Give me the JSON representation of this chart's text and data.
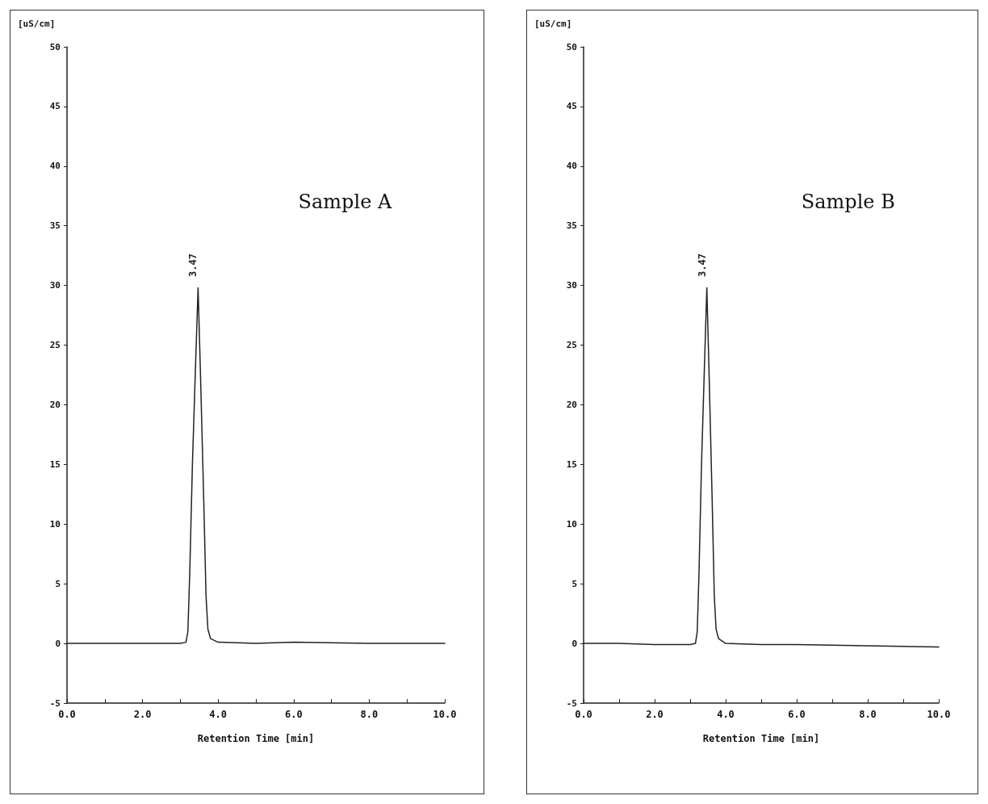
{
  "chart_data": [
    {
      "type": "line",
      "title": "Sample A",
      "xlabel": "Retention Time [min]",
      "ylabel": "[uS/cm]",
      "series": [
        {
          "color": "#222222",
          "x": [
            0,
            1,
            2,
            3,
            3.15,
            3.2,
            3.25,
            3.32,
            3.4,
            3.47,
            3.53,
            3.62,
            3.68,
            3.73,
            3.8,
            4,
            5,
            6,
            8,
            10
          ],
          "values": [
            0,
            0,
            0,
            0,
            0.1,
            1,
            6,
            15,
            23,
            29.8,
            23,
            12,
            4,
            1.2,
            0.4,
            0.1,
            0,
            0.1,
            0,
            0
          ]
        }
      ],
      "xlim": [
        0,
        10
      ],
      "xticks": [
        {
          "value": 0,
          "label": "0.0"
        },
        {
          "value": 1,
          "label": null
        },
        {
          "value": 2,
          "label": "2.0"
        },
        {
          "value": 3,
          "label": null
        },
        {
          "value": 4,
          "label": "4.0"
        },
        {
          "value": 5,
          "label": null
        },
        {
          "value": 6,
          "label": "6.0"
        },
        {
          "value": 7,
          "label": null
        },
        {
          "value": 8,
          "label": "8.0"
        },
        {
          "value": 9,
          "label": null
        },
        {
          "value": 10,
          "label": "10.0"
        }
      ],
      "ylim": [
        -5,
        50
      ],
      "yticks": [
        -5,
        0,
        5,
        10,
        15,
        20,
        25,
        30,
        35,
        40,
        45,
        50
      ],
      "annotations": [
        {
          "text": "3.47",
          "x": 3.47,
          "y": 29.8
        }
      ],
      "grid": false,
      "marker": "none",
      "line_style": "solid"
    },
    {
      "type": "line",
      "title": "Sample B",
      "xlabel": "Retention Time [min]",
      "ylabel": "[uS/cm]",
      "series": [
        {
          "color": "#222222",
          "x": [
            0,
            1,
            2,
            3,
            3.15,
            3.2,
            3.25,
            3.32,
            3.4,
            3.47,
            3.53,
            3.62,
            3.68,
            3.73,
            3.8,
            4,
            5,
            6,
            8,
            10
          ],
          "values": [
            0,
            0,
            -0.1,
            -0.1,
            0,
            1,
            6,
            15,
            23,
            29.8,
            23,
            12,
            4,
            1.2,
            0.4,
            0,
            -0.1,
            -0.1,
            -0.2,
            -0.3
          ]
        }
      ],
      "xlim": [
        0,
        10
      ],
      "xticks": [
        {
          "value": 0,
          "label": "0.0"
        },
        {
          "value": 1,
          "label": null
        },
        {
          "value": 2,
          "label": "2.0"
        },
        {
          "value": 3,
          "label": null
        },
        {
          "value": 4,
          "label": "4.0"
        },
        {
          "value": 5,
          "label": null
        },
        {
          "value": 6,
          "label": "6.0"
        },
        {
          "value": 7,
          "label": null
        },
        {
          "value": 8,
          "label": "8.0"
        },
        {
          "value": 9,
          "label": null
        },
        {
          "value": 10,
          "label": "10.0"
        }
      ],
      "ylim": [
        -5,
        50
      ],
      "yticks": [
        -5,
        0,
        5,
        10,
        15,
        20,
        25,
        30,
        35,
        40,
        45,
        50
      ],
      "annotations": [
        {
          "text": "3.47",
          "x": 3.47,
          "y": 29.8
        }
      ],
      "grid": false,
      "marker": "none",
      "line_style": "solid"
    }
  ]
}
